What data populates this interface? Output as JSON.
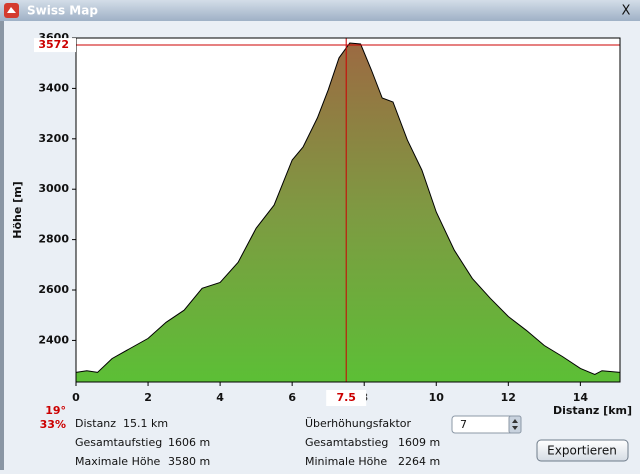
{
  "window": {
    "title": "Swiss Map",
    "close": "X"
  },
  "chart_data": {
    "type": "area",
    "y_label": "Höhe [m]",
    "x_label": "Distanz [km]",
    "x": [
      0,
      0.3,
      0.6,
      1.0,
      1.5,
      2.0,
      2.5,
      3.0,
      3.5,
      4.0,
      4.5,
      5.0,
      5.5,
      6.0,
      6.3,
      6.7,
      7.0,
      7.3,
      7.6,
      7.9,
      8.2,
      8.5,
      8.8,
      9.2,
      9.6,
      10.0,
      10.5,
      11.0,
      11.5,
      12.0,
      12.5,
      13.0,
      13.5,
      14.0,
      14.4,
      14.6,
      15.1
    ],
    "values": [
      2273,
      2280,
      2273,
      2328,
      2368,
      2408,
      2472,
      2520,
      2607,
      2630,
      2710,
      2845,
      2937,
      3116,
      3167,
      3283,
      3394,
      3521,
      3580,
      3576,
      3473,
      3362,
      3346,
      3195,
      3076,
      2909,
      2758,
      2646,
      2567,
      2495,
      2440,
      2380,
      2336,
      2289,
      2265,
      2280,
      2273
    ],
    "color": "#000000",
    "xlim": [
      0,
      15.1
    ],
    "ylim": [
      2235,
      3600
    ],
    "xticks": [
      0,
      2,
      4,
      6,
      8,
      10,
      12,
      14
    ],
    "yticks": [
      2400,
      2600,
      2800,
      3000,
      3200,
      3400,
      3600
    ],
    "grid": false,
    "cursor": {
      "x": 7.5,
      "y": 3572,
      "color": "#cc0000"
    }
  },
  "info": {
    "slope_deg": "19°",
    "slope_pct": "33%",
    "distance": {
      "label": "Distanz",
      "value": "15.1 km"
    },
    "ascent": {
      "label": "Gesamtaufstieg",
      "value": "1606 m"
    },
    "max": {
      "label": "Maximale Höhe",
      "value": "3580 m"
    },
    "exaggeration": {
      "label": "Überhöhungsfaktor",
      "value": "7"
    },
    "descent": {
      "label": "Gesamtabstieg",
      "value": "1609 m"
    },
    "min": {
      "label": "Minimale Höhe",
      "value": "2264 m"
    },
    "export": "Exportieren"
  }
}
